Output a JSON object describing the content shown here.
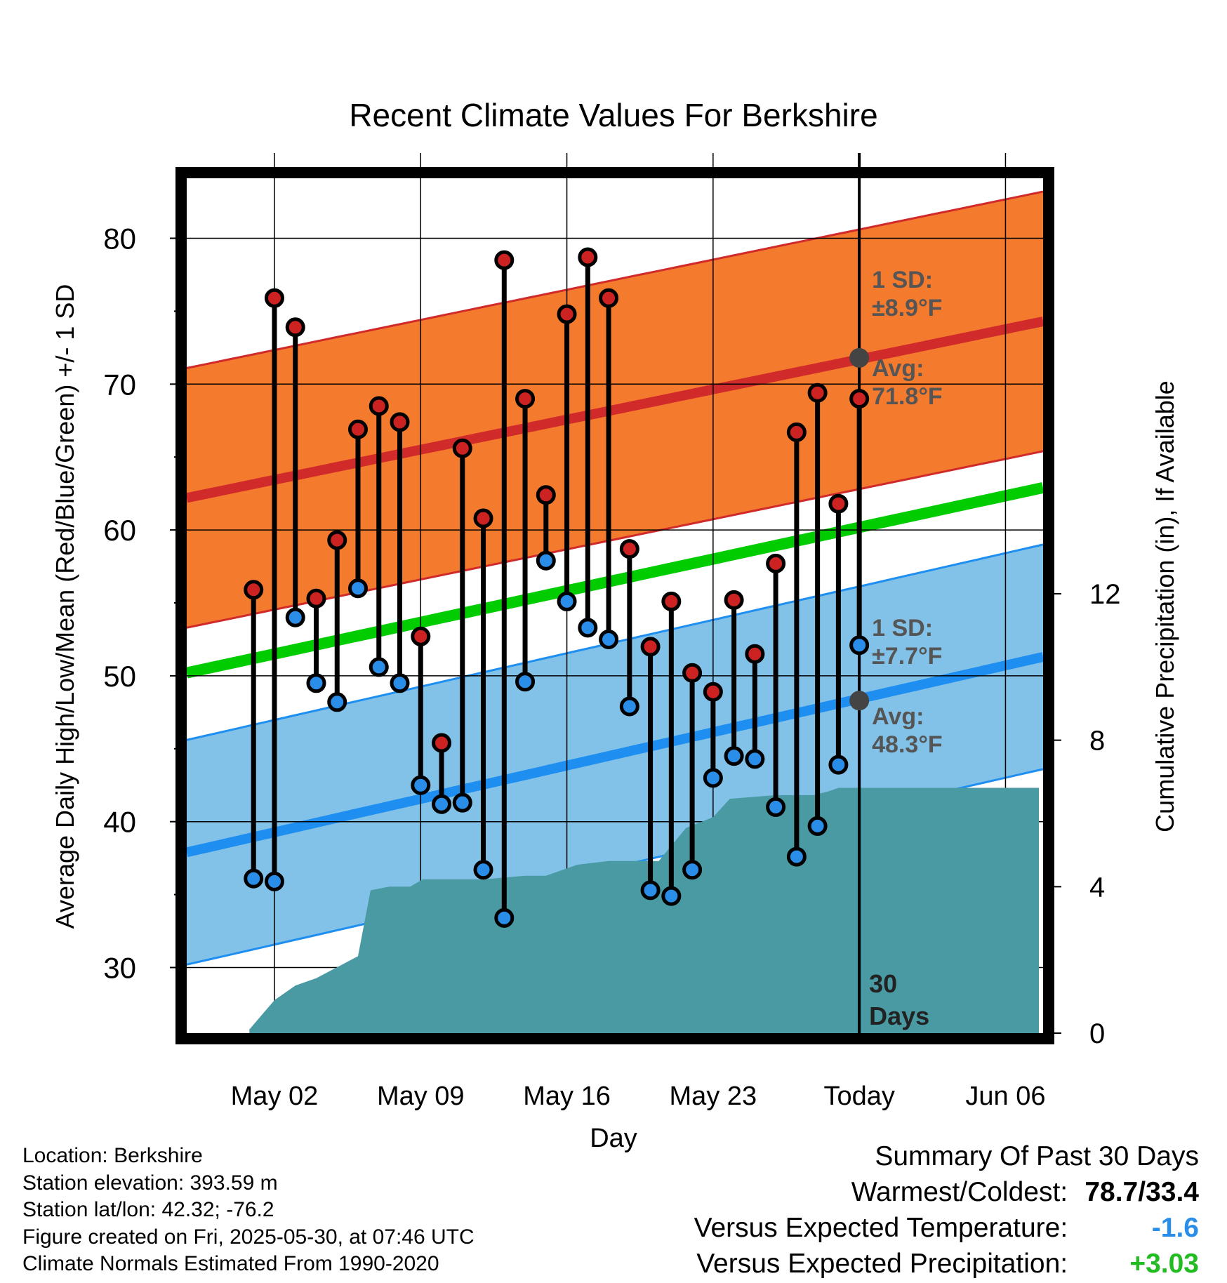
{
  "chart_data": {
    "type": "line",
    "title": "Recent Climate Values For Berkshire",
    "xlabel": "Day",
    "ylabel": "Average Daily High/Low/Mean (Red/Blue/Green) +/- 1 SD",
    "y2label": "Cumulative Precipitation (in), If Available",
    "x_range_days": [
      -32.2,
      8.8
    ],
    "today_date": "2025-05-30",
    "today_label": "Today",
    "xtick_labels": [
      {
        "day": -28,
        "label": "May 02"
      },
      {
        "day": -21,
        "label": "May 09"
      },
      {
        "day": -14,
        "label": "May 16"
      },
      {
        "day": -7,
        "label": "May 23"
      },
      {
        "day": 0,
        "label": "Today"
      },
      {
        "day": 7,
        "label": "Jun 06"
      }
    ],
    "ylim": [
      25.5,
      84.5
    ],
    "yticks": [
      30,
      40,
      50,
      60,
      70,
      80
    ],
    "y2lim": [
      0,
      23.5
    ],
    "y2ticks": [
      0,
      4,
      8,
      12
    ],
    "grid": true,
    "colors": {
      "high_band": "#f47a2e",
      "high_line": "#d02a2a",
      "low_band": "#83c2e8",
      "low_line": "#1e8ff0",
      "mean_line": "#00cc00",
      "precip": "#4a9aa4",
      "high_marker": "#cc2222",
      "low_marker": "#2a8ee8",
      "avg_marker": "#444444",
      "annotation": "#555555"
    },
    "normals": {
      "high_avg": {
        "start": 62.2,
        "end": 74.3
      },
      "high_sd": 8.9,
      "low_avg": {
        "start": 37.9,
        "end": 51.3
      },
      "low_sd": 7.7,
      "mean": {
        "start": 50.2,
        "end": 62.9
      }
    },
    "today_normals": {
      "high": 71.8,
      "low": 48.3
    },
    "annotations": {
      "high_sd": [
        "1 SD:",
        "±8.9°F"
      ],
      "high_avg": [
        "Avg:",
        "71.8°F"
      ],
      "low_sd": [
        "1 SD:",
        "±7.7°F"
      ],
      "low_avg": [
        "Avg:",
        "48.3°F"
      ],
      "days": [
        "30",
        "Days"
      ]
    },
    "series": [
      {
        "name": "High",
        "values": [
          55.9,
          75.9,
          73.9,
          55.3,
          59.3,
          66.9,
          68.5,
          67.4,
          52.7,
          45.4,
          65.6,
          60.8,
          78.5,
          69.0,
          62.4,
          74.8,
          78.7,
          75.9,
          58.7,
          52.0,
          55.1,
          50.2,
          48.9,
          55.2,
          51.5,
          57.7,
          66.7,
          69.4,
          61.8,
          69.0
        ]
      },
      {
        "name": "Low",
        "values": [
          36.1,
          35.9,
          54.0,
          49.5,
          48.2,
          56.0,
          50.6,
          49.5,
          42.5,
          41.2,
          41.3,
          36.7,
          33.4,
          49.6,
          57.9,
          55.1,
          53.3,
          52.5,
          47.9,
          35.3,
          34.9,
          36.7,
          43.0,
          44.5,
          44.3,
          41.0,
          37.6,
          39.7,
          43.9,
          52.1
        ]
      }
    ],
    "days_offset": [
      -29,
      -28,
      -27,
      -26,
      -25,
      -24,
      -23,
      -22,
      -21,
      -20,
      -19,
      -18,
      -17,
      -16,
      -15,
      -14,
      -13,
      -12,
      -11,
      -10,
      -9,
      -8,
      -7,
      -6,
      -5,
      -4,
      -3,
      -2,
      -1,
      0
    ],
    "precip_cumulative": [
      {
        "day": -29.2,
        "value": 0.1
      },
      {
        "day": -28,
        "value": 0.9
      },
      {
        "day": -27,
        "value": 1.3
      },
      {
        "day": -26,
        "value": 1.5
      },
      {
        "day": -25,
        "value": 1.8
      },
      {
        "day": -24,
        "value": 2.1
      },
      {
        "day": -23.4,
        "value": 3.9
      },
      {
        "day": -22.5,
        "value": 4.0
      },
      {
        "day": -21.5,
        "value": 4.0
      },
      {
        "day": -20.9,
        "value": 4.2
      },
      {
        "day": -18,
        "value": 4.2
      },
      {
        "day": -16,
        "value": 4.3
      },
      {
        "day": -15,
        "value": 4.3
      },
      {
        "day": -13.5,
        "value": 4.6
      },
      {
        "day": -12,
        "value": 4.7
      },
      {
        "day": -9.6,
        "value": 4.7
      },
      {
        "day": -8.3,
        "value": 5.6
      },
      {
        "day": -7,
        "value": 5.9
      },
      {
        "day": -6.2,
        "value": 6.4
      },
      {
        "day": -4,
        "value": 6.5
      },
      {
        "day": -2.2,
        "value": 6.5
      },
      {
        "day": -1.5,
        "value": 6.6
      },
      {
        "day": -1,
        "value": 6.7
      },
      {
        "day": 8.6,
        "value": 6.7
      }
    ]
  },
  "info": {
    "location": "Location: Berkshire",
    "elevation": "Station elevation: 393.59 m",
    "latlon": "Station lat/lon: 42.32; -76.2",
    "created": "Figure created on Fri, 2025-05-30, at 07:46 UTC",
    "normals_period": "Climate Normals Estimated From 1990-2020"
  },
  "summary": {
    "heading": "Summary Of Past 30 Days",
    "warmest_label": "Warmest/Coldest:",
    "warmest_value": "78.7/33.4",
    "temp_label": "Versus Expected Temperature:",
    "temp_value": "-1.6",
    "temp_color": "#2a8ee8",
    "precip_label": "Versus Expected Precipitation:",
    "precip_value": "+3.03",
    "precip_color": "#22bb22"
  }
}
